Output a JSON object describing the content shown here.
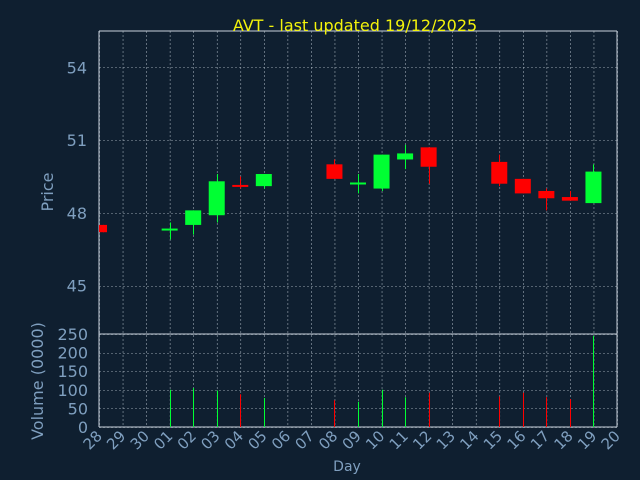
{
  "chart_data": [
    {
      "type": "candlestick",
      "title": "AVT - last updated 19/12/2025",
      "ylabel": "Price",
      "xlabel": "",
      "ylim": [
        43,
        55.5
      ],
      "yticks": [
        45,
        48,
        51,
        54
      ],
      "grid": true,
      "x": [
        "28",
        "29",
        "30",
        "01",
        "02",
        "03",
        "04",
        "05",
        "06",
        "07",
        "08",
        "09",
        "10",
        "11",
        "12",
        "13",
        "14",
        "15",
        "16",
        "17",
        "18",
        "19",
        "20"
      ],
      "candles": [
        {
          "x": "28",
          "open": 47.5,
          "close": 47.2,
          "high": 47.5,
          "low": 47.2
        },
        {
          "x": "01",
          "open": 47.3,
          "close": 47.35,
          "high": 47.6,
          "low": 46.9
        },
        {
          "x": "02",
          "open": 47.5,
          "close": 48.1,
          "high": 48.1,
          "low": 47.1
        },
        {
          "x": "03",
          "open": 47.9,
          "close": 49.3,
          "high": 49.6,
          "low": 47.6
        },
        {
          "x": "04",
          "open": 49.15,
          "close": 49.1,
          "high": 49.5,
          "low": 49.0
        },
        {
          "x": "05",
          "open": 49.1,
          "close": 49.6,
          "high": 49.6,
          "low": 49.0
        },
        {
          "x": "08",
          "open": 50.0,
          "close": 49.4,
          "high": 50.2,
          "low": 49.4
        },
        {
          "x": "09",
          "open": 49.2,
          "close": 49.25,
          "high": 49.6,
          "low": 48.8
        },
        {
          "x": "10",
          "open": 49.0,
          "close": 50.4,
          "high": 50.4,
          "low": 48.9
        },
        {
          "x": "11",
          "open": 50.2,
          "close": 50.45,
          "high": 50.8,
          "low": 49.8
        },
        {
          "x": "12",
          "open": 50.7,
          "close": 49.9,
          "high": 50.7,
          "low": 49.2
        },
        {
          "x": "15",
          "open": 50.1,
          "close": 49.2,
          "high": 50.4,
          "low": 49.1
        },
        {
          "x": "16",
          "open": 49.4,
          "close": 48.8,
          "high": 49.4,
          "low": 48.8
        },
        {
          "x": "17",
          "open": 48.9,
          "close": 48.6,
          "high": 49.0,
          "low": 48.1
        },
        {
          "x": "18",
          "open": 48.65,
          "close": 48.5,
          "high": 48.9,
          "low": 48.5
        },
        {
          "x": "19",
          "open": 48.4,
          "close": 49.7,
          "high": 50.0,
          "low": 48.4
        }
      ]
    },
    {
      "type": "bar",
      "title": "",
      "ylabel": "Volume (0000)",
      "xlabel": "Day",
      "ylim": [
        0,
        250
      ],
      "yticks": [
        0,
        50,
        100,
        150,
        200,
        250
      ],
      "grid": true,
      "categories": [
        "28",
        "29",
        "30",
        "01",
        "02",
        "03",
        "04",
        "05",
        "06",
        "07",
        "08",
        "09",
        "10",
        "11",
        "12",
        "13",
        "14",
        "15",
        "16",
        "17",
        "18",
        "19",
        "20"
      ],
      "bars": [
        {
          "x": "01",
          "value": 100,
          "direction": "up"
        },
        {
          "x": "02",
          "value": 105,
          "direction": "up"
        },
        {
          "x": "03",
          "value": 98,
          "direction": "up"
        },
        {
          "x": "04",
          "value": 88,
          "direction": "down"
        },
        {
          "x": "05",
          "value": 78,
          "direction": "up"
        },
        {
          "x": "08",
          "value": 72,
          "direction": "down"
        },
        {
          "x": "09",
          "value": 68,
          "direction": "up"
        },
        {
          "x": "10",
          "value": 100,
          "direction": "up"
        },
        {
          "x": "11",
          "value": 80,
          "direction": "up"
        },
        {
          "x": "12",
          "value": 92,
          "direction": "down"
        },
        {
          "x": "15",
          "value": 82,
          "direction": "down"
        },
        {
          "x": "16",
          "value": 92,
          "direction": "down"
        },
        {
          "x": "17",
          "value": 80,
          "direction": "down"
        },
        {
          "x": "18",
          "value": 75,
          "direction": "down"
        },
        {
          "x": "19",
          "value": 245,
          "direction": "up"
        }
      ]
    }
  ],
  "colors": {
    "background": "#0f1f30",
    "up": "#00ff33",
    "down": "#ff0000",
    "grid": "#c8d2dc",
    "axis": "#7f9fbf",
    "title": "#f3f30b"
  }
}
